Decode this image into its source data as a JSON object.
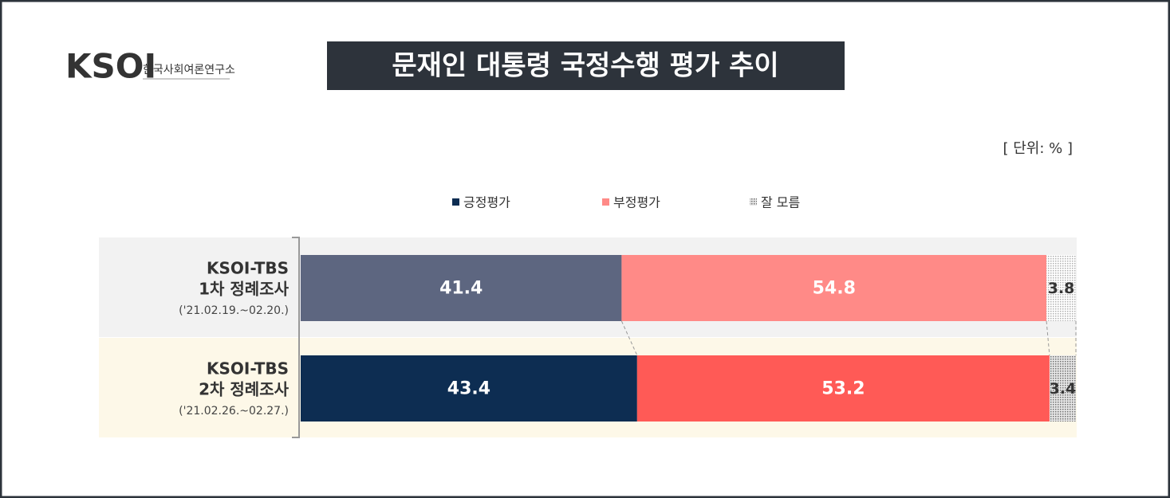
{
  "chart_data": {
    "type": "stacked-barh",
    "logo": {
      "mark": "KSOI",
      "name": "한국사회여론연구소"
    },
    "title": "문재인 대통령 국정수행 평가 추이",
    "unit": "[ 단위: % ]",
    "categories": [
      [
        "KSOI-TBS",
        "1차 정례조사"
      ],
      [
        "KSOI-TBS",
        "2차 정례조사"
      ]
    ],
    "periods": [
      "('21.02.19.~02.20.)",
      "('21.02.26.~02.27.)"
    ],
    "row_backgrounds": [
      "#f2f2f2",
      "#fdf8e8"
    ],
    "xlim": [
      0,
      100
    ],
    "series": [
      {
        "name": "긍정평가",
        "color": "#0d2d52",
        "colors": [
          "#5d6680",
          "#0d2d52"
        ],
        "values": [
          41.4,
          43.4
        ]
      },
      {
        "name": "부정평가",
        "color": "#ff8a87",
        "colors": [
          "#ff8a87",
          "#ff5a56"
        ],
        "values": [
          54.8,
          53.2
        ]
      },
      {
        "name": "잘 모름",
        "color": "#bbbbbb",
        "colors": [
          "#d0d0d0",
          "#a8a8a8"
        ],
        "values": [
          3.8,
          3.4
        ]
      }
    ]
  }
}
